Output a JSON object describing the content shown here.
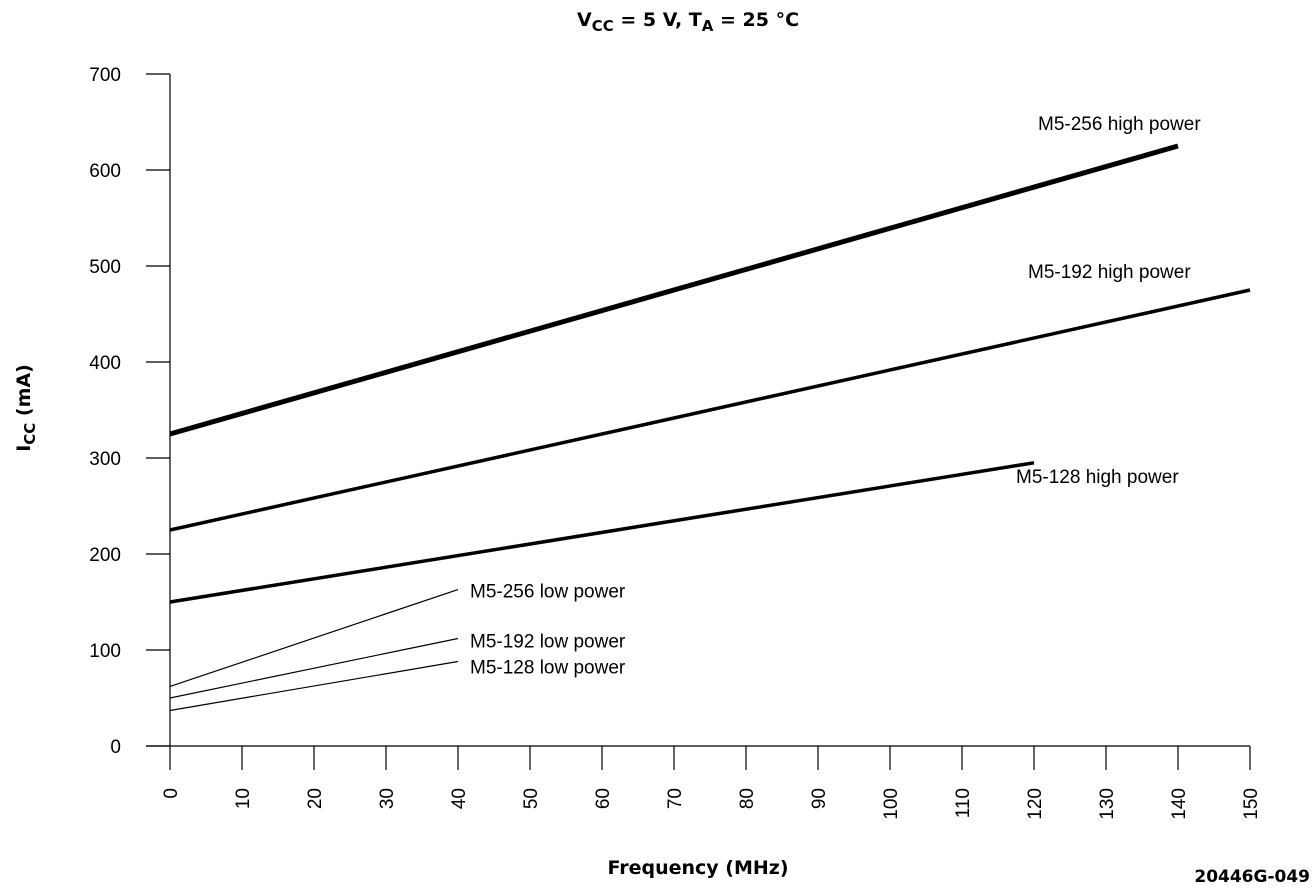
{
  "chart_data": {
    "type": "line",
    "title": {
      "main": "V",
      "main_sub": "CC",
      "mid": " = 5 V, T",
      "mid_sub": "A",
      "tail": " = 25 °C"
    },
    "ylabel": {
      "main": "I",
      "sub": "CC",
      "tail": " (mA)"
    },
    "xlabel": "Frequency (MHz)",
    "figure_id": "20446G-049",
    "xlim": [
      0,
      150
    ],
    "ylim": [
      0,
      700
    ],
    "xticks": [
      "0",
      "10",
      "20",
      "30",
      "40",
      "50",
      "60",
      "70",
      "80",
      "90",
      "100",
      "110",
      "120",
      "130",
      "140",
      "150"
    ],
    "yticks": [
      "0",
      "100",
      "200",
      "300",
      "400",
      "500",
      "600",
      "700"
    ],
    "grid": false,
    "series": [
      {
        "name": "M5-256 high power",
        "x": [
          0,
          140
        ],
        "y": [
          325,
          625
        ],
        "weight": "heavy"
      },
      {
        "name": "M5-192 high power",
        "x": [
          0,
          150
        ],
        "y": [
          225,
          475
        ],
        "weight": "medium"
      },
      {
        "name": "M5-128 high power",
        "x": [
          0,
          120
        ],
        "y": [
          150,
          295
        ],
        "weight": "medium"
      },
      {
        "name": "M5-256 low power",
        "x": [
          0,
          40
        ],
        "y": [
          62,
          163
        ],
        "weight": "thin"
      },
      {
        "name": "M5-192 low power",
        "x": [
          0,
          40
        ],
        "y": [
          50,
          112
        ],
        "weight": "thin"
      },
      {
        "name": "M5-128 low power",
        "x": [
          0,
          40
        ],
        "y": [
          37,
          88
        ],
        "weight": "thin"
      }
    ]
  }
}
